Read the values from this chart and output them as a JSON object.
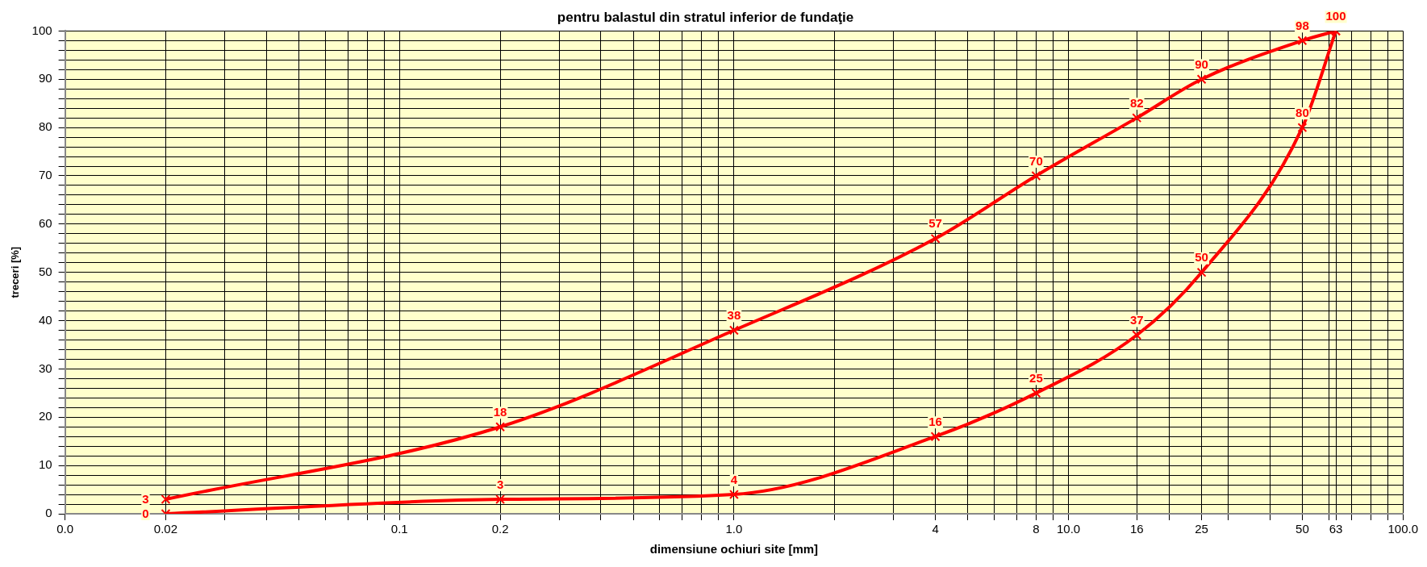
{
  "chart_data": {
    "type": "line",
    "title": "pentru balastul din stratul inferior de fundaţie",
    "xlabel": "dimensiune ochiuri site [mm]",
    "ylabel": "treceri [%]",
    "log": "x",
    "xlim": [
      0.01,
      100
    ],
    "xticks": [
      {
        "value": 0.01,
        "label": "0.0"
      },
      0.02,
      {
        "value": 0.03,
        "label": null
      },
      {
        "value": 0.04,
        "label": null
      },
      {
        "value": 0.05,
        "label": null
      },
      {
        "value": 0.06,
        "label": null
      },
      {
        "value": 0.07,
        "label": null
      },
      {
        "value": 0.08,
        "label": null
      },
      {
        "value": 0.09,
        "label": null
      },
      0.1,
      0.2,
      {
        "value": 0.3,
        "label": null
      },
      {
        "value": 0.4,
        "label": null
      },
      {
        "value": 0.5,
        "label": null
      },
      {
        "value": 0.6,
        "label": null
      },
      {
        "value": 0.7,
        "label": null
      },
      {
        "value": 0.8,
        "label": null
      },
      {
        "value": 0.9,
        "label": null
      },
      {
        "value": 1,
        "label": "1.0"
      },
      {
        "value": 2,
        "label": null
      },
      {
        "value": 3,
        "label": null
      },
      4,
      {
        "value": 5,
        "label": null
      },
      {
        "value": 6,
        "label": null
      },
      {
        "value": 7,
        "label": null
      },
      8,
      {
        "value": 9,
        "label": null
      },
      {
        "value": 10,
        "label": "10.0"
      },
      16,
      {
        "value": 20,
        "label": null
      },
      25,
      {
        "value": 30,
        "label": null
      },
      {
        "value": 40,
        "label": null
      },
      50,
      {
        "value": 60,
        "label": null
      },
      63,
      {
        "value": 70,
        "label": null
      },
      {
        "value": 80,
        "label": null
      },
      {
        "value": 90,
        "label": null
      },
      {
        "value": 100,
        "label": "100.0"
      }
    ],
    "ylim": [
      0,
      100
    ],
    "yticks": [
      0,
      {
        "value": 2,
        "label": null
      },
      {
        "value": 4,
        "label": null
      },
      {
        "value": 6,
        "label": null
      },
      {
        "value": 8,
        "label": null
      },
      10,
      {
        "value": 12,
        "label": null
      },
      {
        "value": 14,
        "label": null
      },
      {
        "value": 16,
        "label": null
      },
      {
        "value": 18,
        "label": null
      },
      20,
      {
        "value": 22,
        "label": null
      },
      {
        "value": 24,
        "label": null
      },
      {
        "value": 26,
        "label": null
      },
      {
        "value": 28,
        "label": null
      },
      30,
      {
        "value": 32,
        "label": null
      },
      {
        "value": 34,
        "label": null
      },
      {
        "value": 36,
        "label": null
      },
      {
        "value": 38,
        "label": null
      },
      40,
      {
        "value": 42,
        "label": null
      },
      {
        "value": 44,
        "label": null
      },
      {
        "value": 46,
        "label": null
      },
      {
        "value": 48,
        "label": null
      },
      50,
      {
        "value": 52,
        "label": null
      },
      {
        "value": 54,
        "label": null
      },
      {
        "value": 56,
        "label": null
      },
      {
        "value": 58,
        "label": null
      },
      60,
      {
        "value": 62,
        "label": null
      },
      {
        "value": 64,
        "label": null
      },
      {
        "value": 66,
        "label": null
      },
      {
        "value": 68,
        "label": null
      },
      70,
      {
        "value": 72,
        "label": null
      },
      {
        "value": 74,
        "label": null
      },
      {
        "value": 76,
        "label": null
      },
      {
        "value": 78,
        "label": null
      },
      80,
      {
        "value": 82,
        "label": null
      },
      {
        "value": 84,
        "label": null
      },
      {
        "value": 86,
        "label": null
      },
      {
        "value": 88,
        "label": null
      },
      90,
      {
        "value": 92,
        "label": null
      },
      {
        "value": 94,
        "label": null
      },
      {
        "value": 96,
        "label": null
      },
      {
        "value": 98,
        "label": null
      },
      100
    ],
    "grid": true,
    "legend": false,
    "marker": "cross",
    "line_style": "solid",
    "data_labels": true,
    "series": [
      {
        "color": "#ff0000",
        "x": [
          0.02,
          0.2,
          1,
          4,
          8,
          16,
          25,
          50,
          63
        ],
        "values": [
          3,
          18,
          38,
          57,
          70,
          82,
          90,
          98,
          100
        ]
      },
      {
        "color": "#ff0000",
        "x": [
          0.02,
          0.2,
          1,
          4,
          8,
          16,
          25,
          50,
          63
        ],
        "values": [
          0,
          3,
          4,
          16,
          25,
          37,
          50,
          80,
          100
        ],
        "value_labels": [
          "0",
          "3",
          "4",
          "16",
          "25",
          "37",
          "50",
          "80",
          null
        ]
      }
    ]
  }
}
